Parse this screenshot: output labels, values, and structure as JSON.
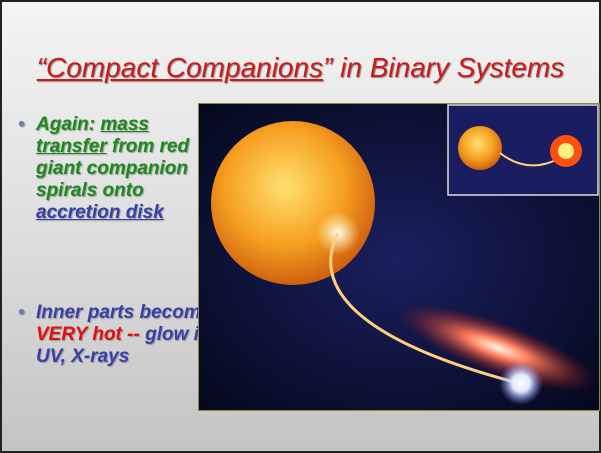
{
  "slide": {
    "title": {
      "underlined": "“Compact Companions",
      "rest": "” in Binary Systems"
    },
    "bullets": [
      {
        "a": "Again: ",
        "b": "mass transfer",
        "c": " from red giant companion spirals onto ",
        "d": "accretion disk"
      },
      {
        "a": "Inner parts become ",
        "b": "VERY hot",
        "c": " -- ",
        "d": "glow in UV, X-rays"
      }
    ]
  }
}
